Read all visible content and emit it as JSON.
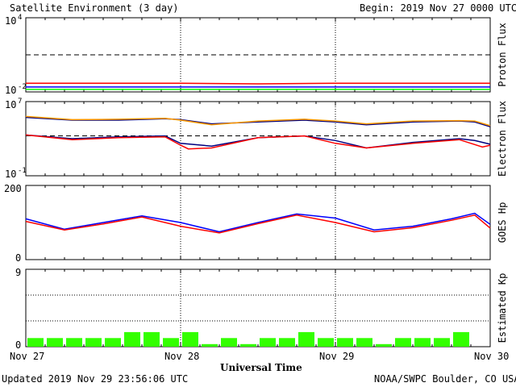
{
  "header": {
    "title": "Satellite Environment (3 day)",
    "begin": "Begin:  2019 Nov 27 0000 UTC"
  },
  "footer": {
    "updated": "Updated 2019 Nov 29 23:56:06 UTC",
    "credit": "NOAA/SWPC Boulder, CO USA",
    "xlabel": "Universal Time"
  },
  "x_ticks": [
    "Nov 27",
    "Nov 28",
    "Nov 29",
    "Nov 30"
  ],
  "colors": {
    "red": "#ff0000",
    "blue": "#0000ff",
    "green": "#00ff00",
    "orange": "#ff9900",
    "navy": "#000080",
    "kp_bar": "#33ff00"
  },
  "chart_data": [
    {
      "type": "line",
      "ylabel": "Proton Flux",
      "scale": "log",
      "ylim_exp": [
        -2,
        4
      ],
      "ytick_labels": [
        {
          "base": "10",
          "exp": "4"
        },
        {
          "base": "10",
          "exp": "-2"
        }
      ],
      "threshold_exp": 1,
      "series": [
        {
          "color": "red",
          "x": [
            0,
            0.5,
            1,
            1.5,
            2,
            2.5,
            3
          ],
          "y_exp": [
            -1.3,
            -1.3,
            -1.3,
            -1.35,
            -1.3,
            -1.3,
            -1.3
          ]
        },
        {
          "color": "blue",
          "x": [
            0,
            0.5,
            1,
            1.5,
            2,
            2.5,
            3
          ],
          "y_exp": [
            -1.6,
            -1.6,
            -1.6,
            -1.6,
            -1.6,
            -1.6,
            -1.6
          ]
        },
        {
          "color": "green",
          "x": [
            0,
            0.5,
            1,
            1.5,
            2,
            2.5,
            3
          ],
          "y_exp": [
            -1.8,
            -1.8,
            -1.8,
            -1.8,
            -1.8,
            -1.8,
            -1.8
          ]
        }
      ]
    },
    {
      "type": "line",
      "ylabel": "Electron Flux",
      "scale": "log",
      "ylim_exp": [
        -1,
        7
      ],
      "ytick_labels": [
        {
          "base": "10",
          "exp": "7"
        },
        {
          "base": "10",
          "exp": "-1"
        }
      ],
      "threshold_exp": 3.3,
      "series": [
        {
          "color": "navy",
          "x": [
            0,
            0.3,
            0.6,
            0.9,
            1.0,
            1.2,
            1.5,
            1.8,
            2.0,
            2.2,
            2.5,
            2.8,
            2.9,
            3.0
          ],
          "y_exp": [
            5.3,
            5.0,
            5.0,
            5.15,
            5.05,
            4.6,
            4.8,
            5.0,
            4.8,
            4.5,
            4.8,
            4.9,
            4.8,
            4.3
          ]
        },
        {
          "color": "orange",
          "x": [
            0,
            0.3,
            0.6,
            0.9,
            1.0,
            1.2,
            1.5,
            1.8,
            2.0,
            2.2,
            2.5,
            2.8,
            2.9,
            3.0
          ],
          "y_exp": [
            5.4,
            5.05,
            5.1,
            5.2,
            5.0,
            4.5,
            4.9,
            5.1,
            4.9,
            4.6,
            4.9,
            4.95,
            4.9,
            4.4
          ]
        },
        {
          "color": "navy",
          "x": [
            0,
            0.3,
            0.6,
            0.9,
            1.0,
            1.2,
            1.5,
            1.8,
            2.0,
            2.2,
            2.5,
            2.8,
            2.9,
            3.0
          ],
          "y_exp": [
            3.4,
            3.0,
            3.2,
            3.3,
            2.5,
            2.2,
            3.1,
            3.3,
            2.8,
            2.0,
            2.6,
            3.0,
            2.8,
            2.4
          ]
        },
        {
          "color": "red",
          "x": [
            0,
            0.3,
            0.6,
            0.9,
            1.0,
            1.05,
            1.2,
            1.5,
            1.8,
            2.0,
            2.2,
            2.5,
            2.8,
            2.95,
            3.0
          ],
          "y_exp": [
            3.4,
            2.9,
            3.1,
            3.2,
            2.3,
            1.9,
            2.0,
            3.1,
            3.3,
            2.5,
            2.0,
            2.5,
            2.9,
            2.1,
            2.3
          ]
        }
      ]
    },
    {
      "type": "line",
      "ylabel": "GOES Hp",
      "ylim": [
        0,
        200
      ],
      "yticks": [
        0,
        200
      ],
      "series": [
        {
          "color": "blue",
          "x": [
            0,
            0.25,
            0.5,
            0.75,
            1.0,
            1.25,
            1.5,
            1.75,
            2.0,
            2.25,
            2.5,
            2.75,
            2.9,
            3.0
          ],
          "y": [
            110,
            82,
            100,
            118,
            100,
            75,
            100,
            123,
            112,
            80,
            90,
            110,
            125,
            95
          ]
        },
        {
          "color": "red",
          "x": [
            0,
            0.25,
            0.5,
            0.75,
            1.0,
            1.25,
            1.5,
            1.75,
            2.0,
            2.25,
            2.5,
            2.75,
            2.9,
            3.0
          ],
          "y": [
            103,
            80,
            96,
            115,
            90,
            72,
            97,
            120,
            100,
            75,
            86,
            106,
            120,
            85
          ]
        }
      ]
    },
    {
      "type": "bar",
      "ylabel": "Estimated Kp",
      "ylim": [
        0,
        9
      ],
      "yticks": [
        0,
        9
      ],
      "values": [
        1,
        1,
        1,
        1,
        1,
        1.7,
        1.7,
        1,
        1.7,
        0.3,
        1,
        0.3,
        1,
        1,
        1.7,
        1,
        1,
        1,
        0.3,
        1,
        1,
        1,
        1.7
      ]
    }
  ]
}
